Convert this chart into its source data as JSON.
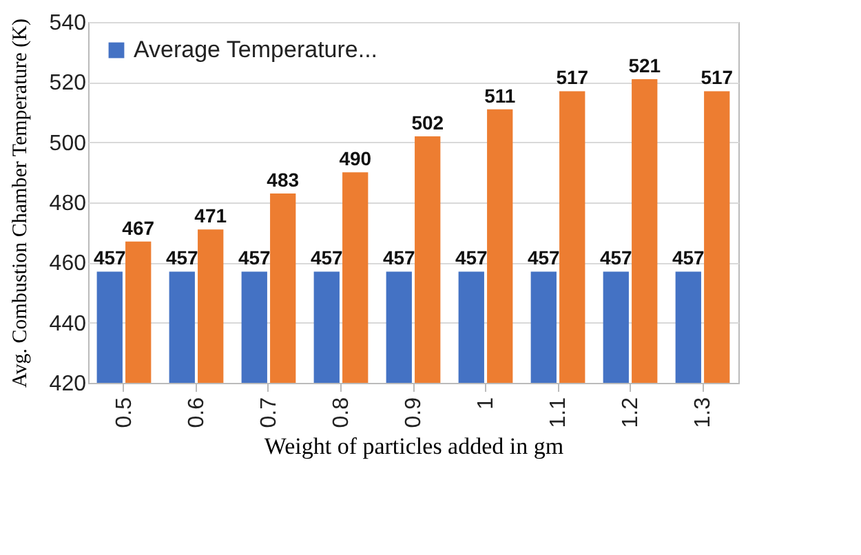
{
  "chart_data": {
    "type": "bar",
    "xlabel": "Weight of particles added in gm",
    "ylabel": "Avg. Combustion Chamber Temperature (K)",
    "categories": [
      "0.5",
      "0.6",
      "0.7",
      "0.8",
      "0.9",
      "1",
      "1.1",
      "1.2",
      "1.3"
    ],
    "series": [
      {
        "name": "Average Temperature...",
        "color": "#4472c4",
        "values": [
          457,
          457,
          457,
          457,
          457,
          457,
          457,
          457,
          457
        ]
      },
      {
        "color": "#ed7d31",
        "values": [
          467,
          471,
          483,
          490,
          502,
          511,
          517,
          521,
          517
        ]
      }
    ],
    "ylim": [
      420,
      540
    ],
    "yticks": [
      420,
      440,
      460,
      480,
      500,
      520,
      540
    ],
    "grid": "y",
    "legend": "top left",
    "data_labels": true
  }
}
